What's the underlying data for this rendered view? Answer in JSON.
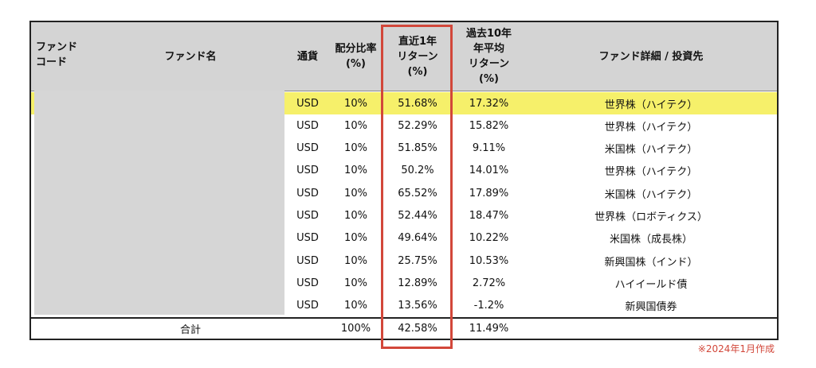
{
  "headers": {
    "fund_code": "ファンド\nコード",
    "fund_name": "ファンド名",
    "currency": "通貨",
    "allocation": "配分比率\n(%)",
    "return_1y": "直近1年\nリターン\n(%)",
    "return_10y": "過去10年\n年平均\nリターン\n(%)",
    "detail": "ファンド詳細 / 投資先"
  },
  "rows": [
    {
      "currency": "USD",
      "allocation": "10%",
      "return_1y": "51.68%",
      "return_10y": "17.32%",
      "detail": "世界株（ハイテク）"
    },
    {
      "currency": "USD",
      "allocation": "10%",
      "return_1y": "52.29%",
      "return_10y": "15.82%",
      "detail": "世界株（ハイテク）"
    },
    {
      "currency": "USD",
      "allocation": "10%",
      "return_1y": "51.85%",
      "return_10y": "9.11%",
      "detail": "米国株（ハイテク）"
    },
    {
      "currency": "USD",
      "allocation": "10%",
      "return_1y": "50.2%",
      "return_10y": "14.01%",
      "detail": "世界株（ハイテク）"
    },
    {
      "currency": "USD",
      "allocation": "10%",
      "return_1y": "65.52%",
      "return_10y": "17.89%",
      "detail": "米国株（ハイテク）"
    },
    {
      "currency": "USD",
      "allocation": "10%",
      "return_1y": "52.44%",
      "return_10y": "18.47%",
      "detail": "世界株（ロボティクス）"
    },
    {
      "currency": "USD",
      "allocation": "10%",
      "return_1y": "49.64%",
      "return_10y": "10.22%",
      "detail": "米国株（成長株）"
    },
    {
      "currency": "USD",
      "allocation": "10%",
      "return_1y": "25.75%",
      "return_10y": "10.53%",
      "detail": "新興国株（インド）"
    },
    {
      "currency": "USD",
      "allocation": "10%",
      "return_1y": "12.89%",
      "return_10y": "2.72%",
      "detail": "ハイイールド債"
    },
    {
      "currency": "USD",
      "allocation": "10%",
      "return_1y": "13.56%",
      "return_10y": "-1.2%",
      "detail": "新興国債券"
    }
  ],
  "total": {
    "label": "合計",
    "allocation": "100%",
    "return_1y": "42.58%",
    "return_10y": "11.49%"
  },
  "note": "※2024年1月作成",
  "colors": {
    "highlight": "#f6f06a",
    "header_bg": "#d4d4d4",
    "red_frame": "#d2473a",
    "masked": "#d6d6d6"
  }
}
